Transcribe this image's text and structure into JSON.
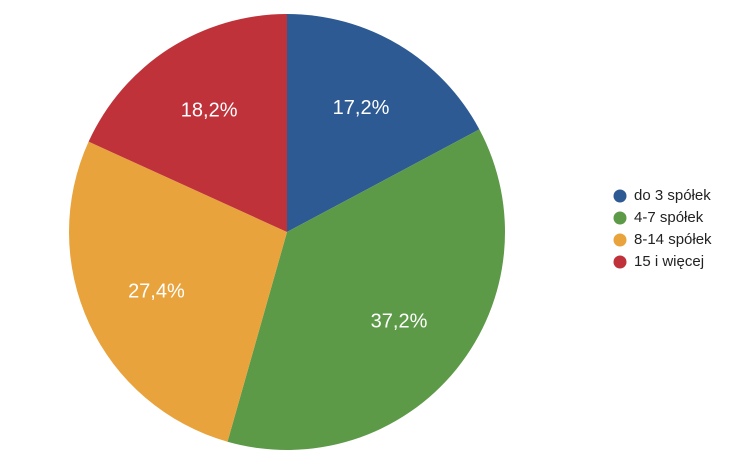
{
  "chart_data": {
    "type": "pie",
    "categories": [
      "do 3 spółek",
      "4-7 spółek",
      "8-14 spółek",
      "15 i więcej"
    ],
    "values": [
      17.2,
      37.2,
      27.4,
      18.2
    ],
    "value_labels": [
      "17,2%",
      "37,2%",
      "27,4%",
      "18,2%"
    ],
    "colors": [
      "#2e5a94",
      "#5c9a48",
      "#e9a33d",
      "#c0323a"
    ],
    "legend": "right"
  }
}
